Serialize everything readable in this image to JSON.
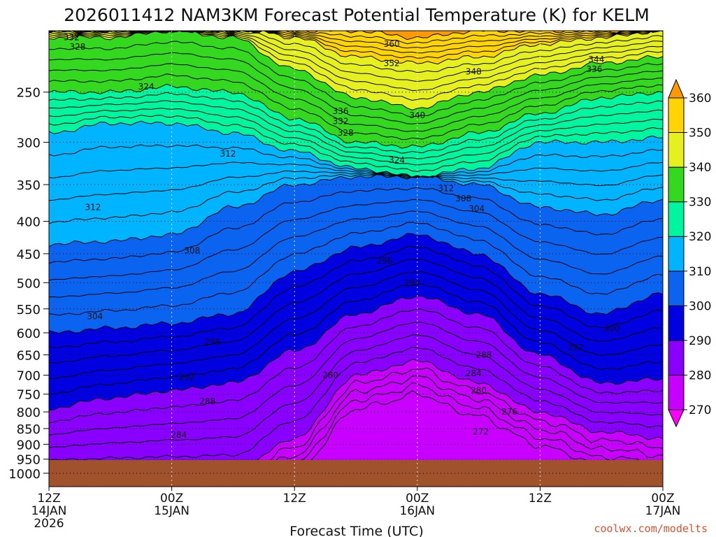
{
  "chart_data": {
    "type": "heatmap",
    "title": "2026011412 NAM3KM Forecast Potential Temperature (K) for KELM",
    "xlabel": "Forecast Time (UTC)",
    "ylabel": "",
    "x_ticks": [
      {
        "hour": 0,
        "label1": "12Z",
        "label2": "14JAN",
        "label3": "2026"
      },
      {
        "hour": 12,
        "label1": "00Z",
        "label2": "15JAN",
        "label3": ""
      },
      {
        "hour": 24,
        "label1": "12Z",
        "label2": "",
        "label3": ""
      },
      {
        "hour": 36,
        "label1": "00Z",
        "label2": "16JAN",
        "label3": ""
      },
      {
        "hour": 48,
        "label1": "12Z",
        "label2": "",
        "label3": ""
      },
      {
        "hour": 60,
        "label1": "00Z",
        "label2": "17JAN",
        "label3": ""
      }
    ],
    "xlim": [
      0,
      60
    ],
    "y_ticks": [
      "250",
      "300",
      "350",
      "400",
      "450",
      "500",
      "550",
      "600",
      "650",
      "700",
      "750",
      "800",
      "850",
      "900",
      "950",
      "1000"
    ],
    "y_tick_values": [
      250,
      300,
      350,
      400,
      450,
      500,
      550,
      600,
      650,
      700,
      750,
      800,
      850,
      900,
      950,
      1000
    ],
    "ylim": [
      200,
      1050
    ],
    "y_scale": "log",
    "colorbar": {
      "ticks": [
        "270",
        "280",
        "290",
        "300",
        "310",
        "320",
        "330",
        "340",
        "350",
        "360"
      ],
      "bands": [
        {
          "from": 260,
          "to": 270,
          "color": "#ff00ff"
        },
        {
          "from": 270,
          "to": 280,
          "color": "#c800ff"
        },
        {
          "from": 280,
          "to": 290,
          "color": "#8a00ff"
        },
        {
          "from": 290,
          "to": 300,
          "color": "#0000e0"
        },
        {
          "from": 300,
          "to": 310,
          "color": "#0a64f0"
        },
        {
          "from": 310,
          "to": 320,
          "color": "#00b4ff"
        },
        {
          "from": 320,
          "to": 330,
          "color": "#00f5a0"
        },
        {
          "from": 330,
          "to": 340,
          "color": "#34d81e"
        },
        {
          "from": 340,
          "to": 350,
          "color": "#e6f01e"
        },
        {
          "from": 350,
          "to": 360,
          "color": "#ffd400"
        },
        {
          "from": 360,
          "to": 370,
          "color": "#ff9900"
        }
      ]
    },
    "profile_hours": [
      0,
      6,
      12,
      18,
      24,
      30,
      36,
      42,
      48,
      54,
      60
    ],
    "isotherm_pressures": {
      "280": [
        1000,
        1000,
        1000,
        1000,
        880,
        700,
        665,
        720,
        800,
        860,
        880
      ],
      "290": [
        790,
        760,
        740,
        720,
        640,
        560,
        525,
        560,
        650,
        720,
        710
      ],
      "300": [
        600,
        590,
        580,
        560,
        480,
        440,
        420,
        450,
        520,
        560,
        520
      ],
      "310": [
        435,
        430,
        420,
        380,
        350,
        340,
        340,
        350,
        380,
        390,
        370
      ],
      "320": [
        290,
        280,
        280,
        290,
        310,
        330,
        340,
        330,
        300,
        300,
        295
      ],
      "330": [
        250,
        250,
        245,
        250,
        275,
        300,
        305,
        290,
        270,
        255,
        250
      ],
      "340": [
        205,
        205,
        200,
        205,
        230,
        255,
        265,
        250,
        235,
        225,
        220
      ],
      "350": [
        200,
        200,
        195,
        195,
        205,
        220,
        225,
        220,
        210,
        205,
        200
      ],
      "360": [
        195,
        195,
        190,
        190,
        195,
        200,
        205,
        200,
        198,
        195,
        195
      ]
    },
    "contour_labels": [
      {
        "text": "332",
        "hour": 2.2,
        "p": 205
      },
      {
        "text": "328",
        "hour": 2.8,
        "p": 212
      },
      {
        "text": "324",
        "hour": 9.5,
        "p": 245
      },
      {
        "text": "360",
        "hour": 33.5,
        "p": 210
      },
      {
        "text": "352",
        "hour": 33.5,
        "p": 225
      },
      {
        "text": "348",
        "hour": 41.5,
        "p": 232
      },
      {
        "text": "344",
        "hour": 53.5,
        "p": 222
      },
      {
        "text": "336",
        "hour": 53.3,
        "p": 230
      },
      {
        "text": "336",
        "hour": 28.5,
        "p": 268
      },
      {
        "text": "340",
        "hour": 36,
        "p": 272
      },
      {
        "text": "332",
        "hour": 28.5,
        "p": 278
      },
      {
        "text": "328",
        "hour": 29,
        "p": 290
      },
      {
        "text": "324",
        "hour": 34,
        "p": 320
      },
      {
        "text": "312",
        "hour": 17.5,
        "p": 313
      },
      {
        "text": "312",
        "hour": 4.3,
        "p": 380
      },
      {
        "text": "312",
        "hour": 38.8,
        "p": 355
      },
      {
        "text": "308",
        "hour": 40.5,
        "p": 368
      },
      {
        "text": "304",
        "hour": 41.8,
        "p": 382
      },
      {
        "text": "308",
        "hour": 14,
        "p": 445
      },
      {
        "text": "296",
        "hour": 32.8,
        "p": 462
      },
      {
        "text": "292",
        "hour": 35.5,
        "p": 500
      },
      {
        "text": "304",
        "hour": 4.5,
        "p": 565
      },
      {
        "text": "300",
        "hour": 55,
        "p": 590
      },
      {
        "text": "296",
        "hour": 16,
        "p": 620
      },
      {
        "text": "292",
        "hour": 51.5,
        "p": 633
      },
      {
        "text": "288",
        "hour": 42.5,
        "p": 650
      },
      {
        "text": "292",
        "hour": 13.5,
        "p": 705
      },
      {
        "text": "284",
        "hour": 41.5,
        "p": 695
      },
      {
        "text": "280",
        "hour": 27.5,
        "p": 700
      },
      {
        "text": "288",
        "hour": 15.5,
        "p": 770
      },
      {
        "text": "280",
        "hour": 42,
        "p": 740
      },
      {
        "text": "276",
        "hour": 45,
        "p": 800
      },
      {
        "text": "272",
        "hour": 42.2,
        "p": 860
      },
      {
        "text": "284",
        "hour": 12.7,
        "p": 870
      }
    ],
    "ground_color": "#a0522d",
    "grid": true
  },
  "credit": "coolwx.com/modelts"
}
